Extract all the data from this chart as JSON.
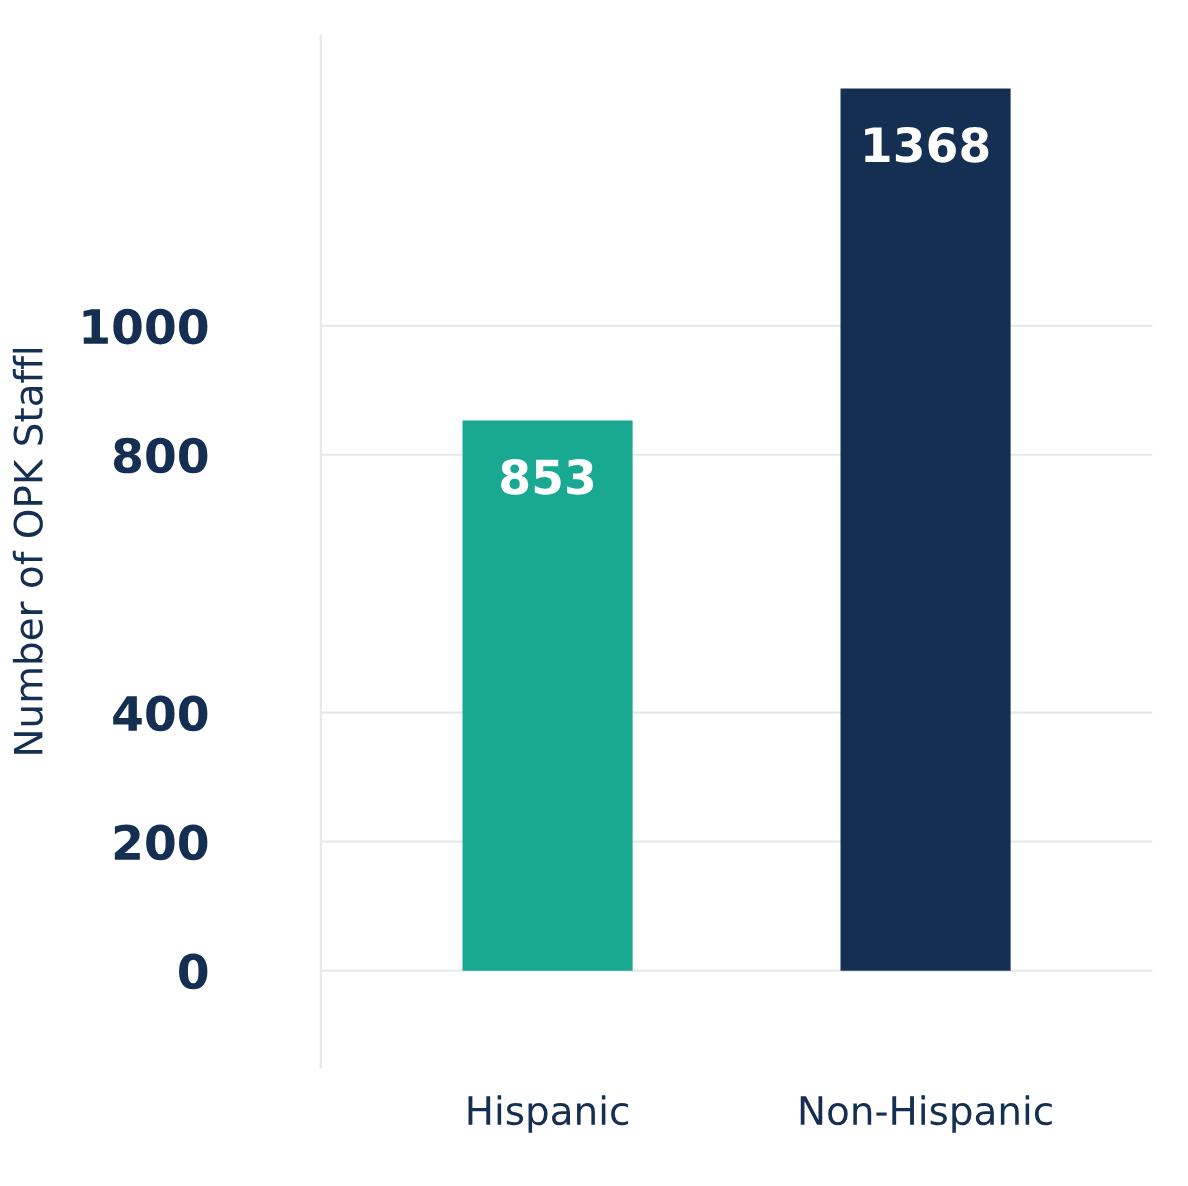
{
  "chart_data": {
    "type": "bar",
    "ylabel": "Number of OPK Staffl",
    "categories": [
      "Hispanic",
      "Non-Hispanic"
    ],
    "values": [
      853,
      1368
    ],
    "colors": [
      "#19a891",
      "#142f52"
    ],
    "ylim": [
      -150,
      1450
    ],
    "yticks": [
      0,
      200,
      400,
      800,
      1000
    ],
    "grid": "y",
    "data_labels": true
  }
}
